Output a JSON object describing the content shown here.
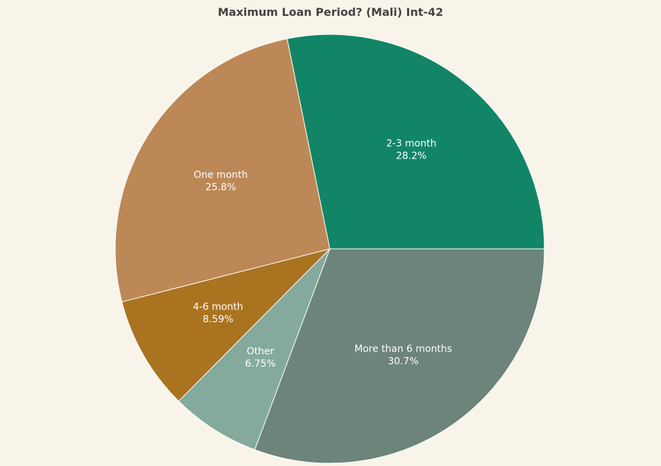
{
  "chart_data": {
    "type": "pie",
    "title": "Maximum Loan Period? (Mali) Int-42",
    "slices": [
      {
        "label": "2-3 month",
        "value": 28.2,
        "value_label": "28.2%",
        "color": "#128567"
      },
      {
        "label": "More than 6 months",
        "value": 30.7,
        "value_label": "30.7%",
        "color": "#6c8479"
      },
      {
        "label": "Other",
        "value": 6.75,
        "value_label": "6.75%",
        "color": "#84aa9e"
      },
      {
        "label": "4-6 month",
        "value": 8.59,
        "value_label": "8.59%",
        "color": "#aa7320"
      },
      {
        "label": "One month",
        "value": 25.8,
        "value_label": "25.8%",
        "color": "#bd8857"
      }
    ],
    "slice_border_color": "#ffffff",
    "background_color": "#f8f4ea",
    "label_color": "#ffffff",
    "legend": "none"
  }
}
